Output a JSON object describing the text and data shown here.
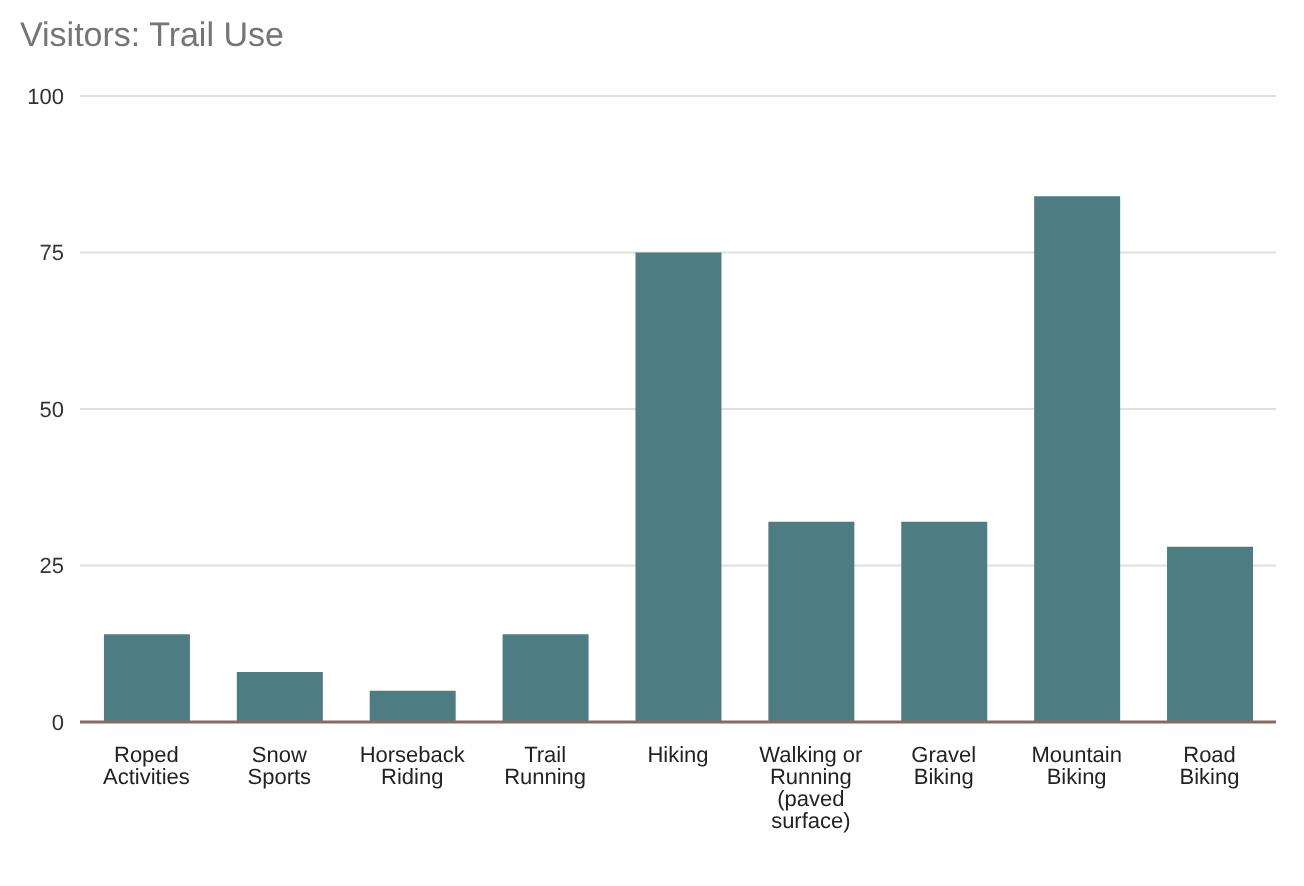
{
  "chart_data": {
    "type": "bar",
    "title": "Visitors: Trail Use",
    "categories": [
      "Roped Activities",
      "Snow Sports",
      "Horseback Riding",
      "Trail Running",
      "Hiking",
      "Walking or Running (paved surface)",
      "Gravel Biking",
      "Mountain Biking",
      "Road Biking"
    ],
    "values": [
      14,
      8,
      5,
      14,
      75,
      32,
      32,
      84,
      28
    ],
    "color": "#4e7c83",
    "ylim": [
      0,
      100
    ],
    "yticks": [
      0,
      25,
      50,
      75,
      100
    ],
    "grid": "y"
  }
}
